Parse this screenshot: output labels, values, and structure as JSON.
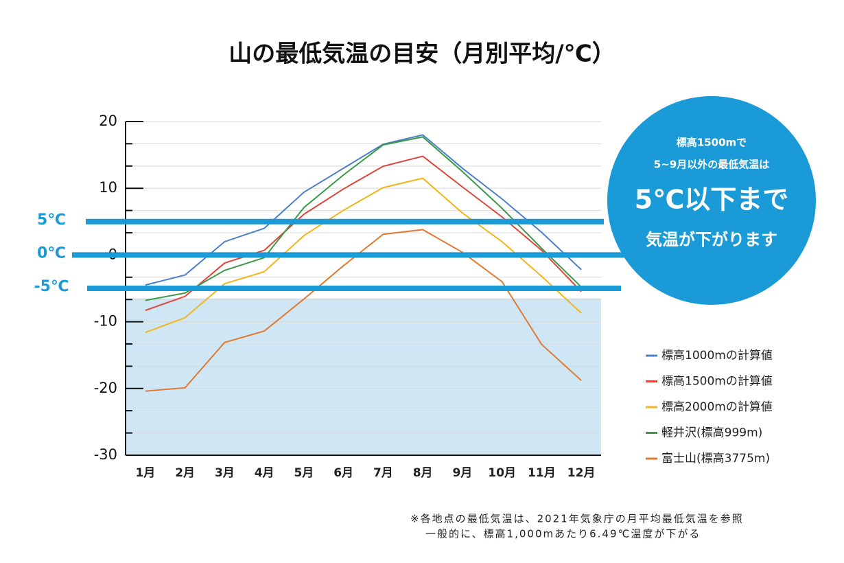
{
  "chart_data": {
    "type": "line",
    "title": "山の最低気温の目安（月別平均/℃）",
    "categories": [
      "1月",
      "2月",
      "3月",
      "4月",
      "5月",
      "6月",
      "7月",
      "8月",
      "9月",
      "10月",
      "11月",
      "12月"
    ],
    "series": [
      {
        "name": "標高1000mの計算値",
        "color": "#4a7fc9",
        "values": [
          -4.5,
          -3.0,
          2.0,
          4.0,
          9.4,
          13.0,
          16.6,
          18.0,
          13.0,
          8.4,
          3.4,
          -2.2
        ]
      },
      {
        "name": "標高1500mの計算値",
        "color": "#e0453a",
        "values": [
          -8.3,
          -6.2,
          -1.2,
          0.7,
          6.1,
          9.9,
          13.3,
          14.8,
          10.2,
          5.7,
          0.7,
          -5.5
        ]
      },
      {
        "name": "標高2000mの計算値",
        "color": "#f2b51c",
        "values": [
          -11.6,
          -9.4,
          -4.3,
          -2.5,
          2.9,
          6.7,
          10.1,
          11.5,
          6.3,
          2.0,
          -3.2,
          -8.7
        ]
      },
      {
        "name": "軽井沢(標高999m)",
        "color": "#3a9a48",
        "values": [
          -6.8,
          -5.7,
          -2.3,
          -0.4,
          7.1,
          12.0,
          16.5,
          17.7,
          12.5,
          7.0,
          1.0,
          -4.8
        ]
      },
      {
        "name": "富士山(標高3775m)",
        "color": "#e07a32",
        "values": [
          -20.4,
          -19.9,
          -13.1,
          -11.4,
          -6.6,
          -1.6,
          3.1,
          3.8,
          0.4,
          -4.0,
          -13.4,
          -18.8
        ]
      }
    ],
    "ylim": [
      -30,
      20
    ],
    "yticks": [
      20,
      10,
      0,
      -10,
      -20,
      -30
    ],
    "minor_yticks": [
      16.67,
      13.33,
      6.67,
      3.33,
      -3.33,
      -6.67,
      -13.33,
      -16.67,
      -23.33,
      -26.67
    ],
    "grid": true,
    "shade_range": [
      -30,
      -6.5
    ],
    "shade_color": "#cfe6f5",
    "reference_color": "#1a9ad6",
    "reference_lines": [
      {
        "value": 5,
        "label": "5℃"
      },
      {
        "value": 0,
        "label": "0℃"
      },
      {
        "value": -5,
        "label": "-5℃"
      }
    ],
    "callout": [
      "標高1500mで",
      "5~9月以外の最低気温は",
      "5℃以下まで",
      "気温が下がります"
    ],
    "notes": [
      "※各地点の最低気温は、2021年気象庁の月平均最低気温を参照",
      "一般的に、標高1,000mあたり6.49℃温度が下がる"
    ],
    "legend": "right"
  }
}
